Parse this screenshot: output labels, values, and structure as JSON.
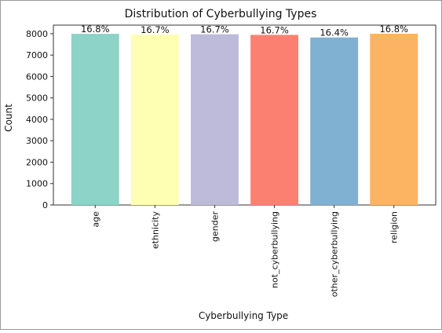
{
  "chart_data": {
    "type": "bar",
    "title": "Distribution of Cyberbullying Types",
    "xlabel": "Cyberbullying Type",
    "ylabel": "Count",
    "categories": [
      "age",
      "ethnicity",
      "gender",
      "not_cyberbullying",
      "other_cyberbullying",
      "religion"
    ],
    "values": [
      7992,
      7961,
      7973,
      7945,
      7823,
      7998
    ],
    "percent_labels": [
      "16.8%",
      "16.7%",
      "16.7%",
      "16.7%",
      "16.4%",
      "16.8%"
    ],
    "colors": [
      "#8dd3c7",
      "#ffffb3",
      "#bebada",
      "#fb8072",
      "#80b1d3",
      "#fdb462"
    ],
    "yticks": [
      0,
      1000,
      2000,
      3000,
      4000,
      5000,
      6000,
      7000,
      8000
    ],
    "ylim": [
      0,
      8400
    ],
    "grid": false,
    "legend": "none"
  }
}
